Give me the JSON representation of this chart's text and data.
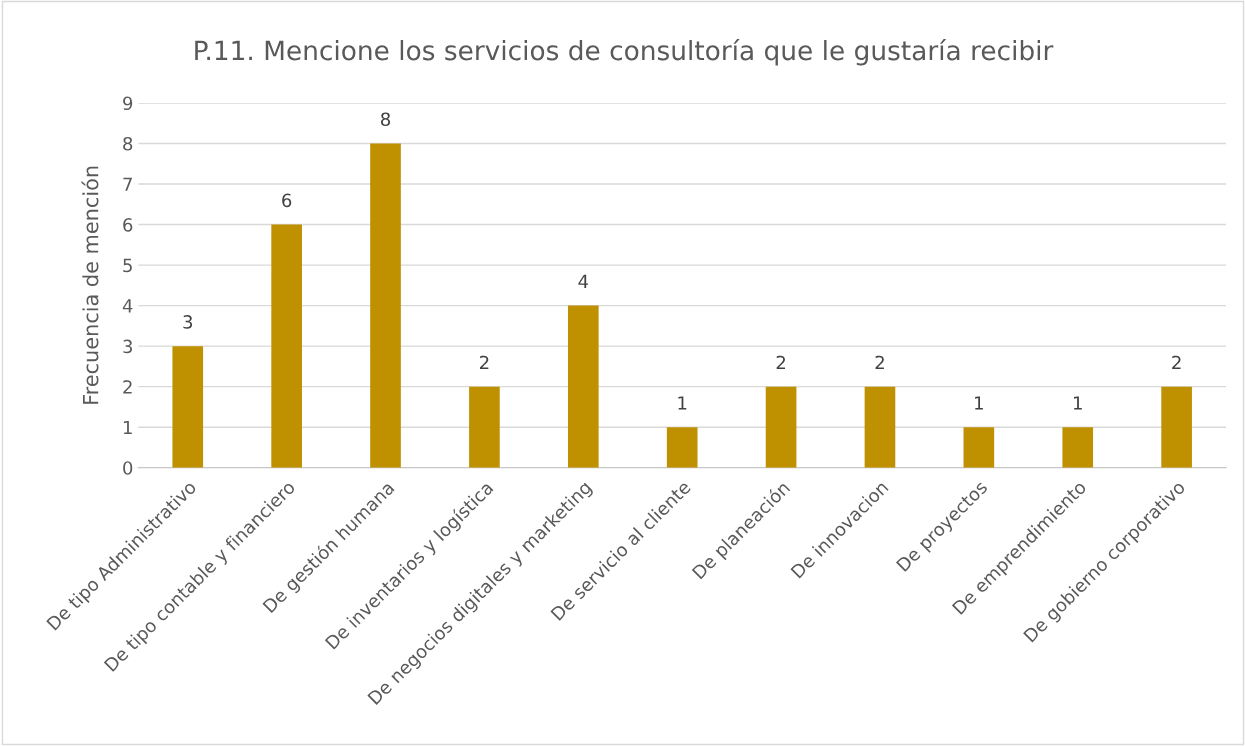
{
  "chart_data": {
    "type": "bar",
    "title": "P.11. Mencione los servicios de consultoría que le gustaría recibir",
    "ylabel": "Frecuencia de mención",
    "categories": [
      "De tipo Administrativo",
      "De tipo contable y financiero",
      "De gestión humana",
      "De inventarios y logística",
      "De negocios digitales y marketing",
      "De servicio al cliente",
      "De planeación",
      "De innovacion",
      "De proyectos",
      "De emprendimiento",
      "De gobierno corporativo"
    ],
    "values": [
      3,
      6,
      8,
      2,
      4,
      1,
      2,
      2,
      1,
      1,
      2
    ],
    "color": "#bf9000",
    "ylim": [
      0,
      9
    ],
    "yticks": [
      0,
      1,
      2,
      3,
      4,
      5,
      6,
      7,
      8,
      9
    ],
    "grid": "y",
    "data_labels": true,
    "legend": false
  }
}
